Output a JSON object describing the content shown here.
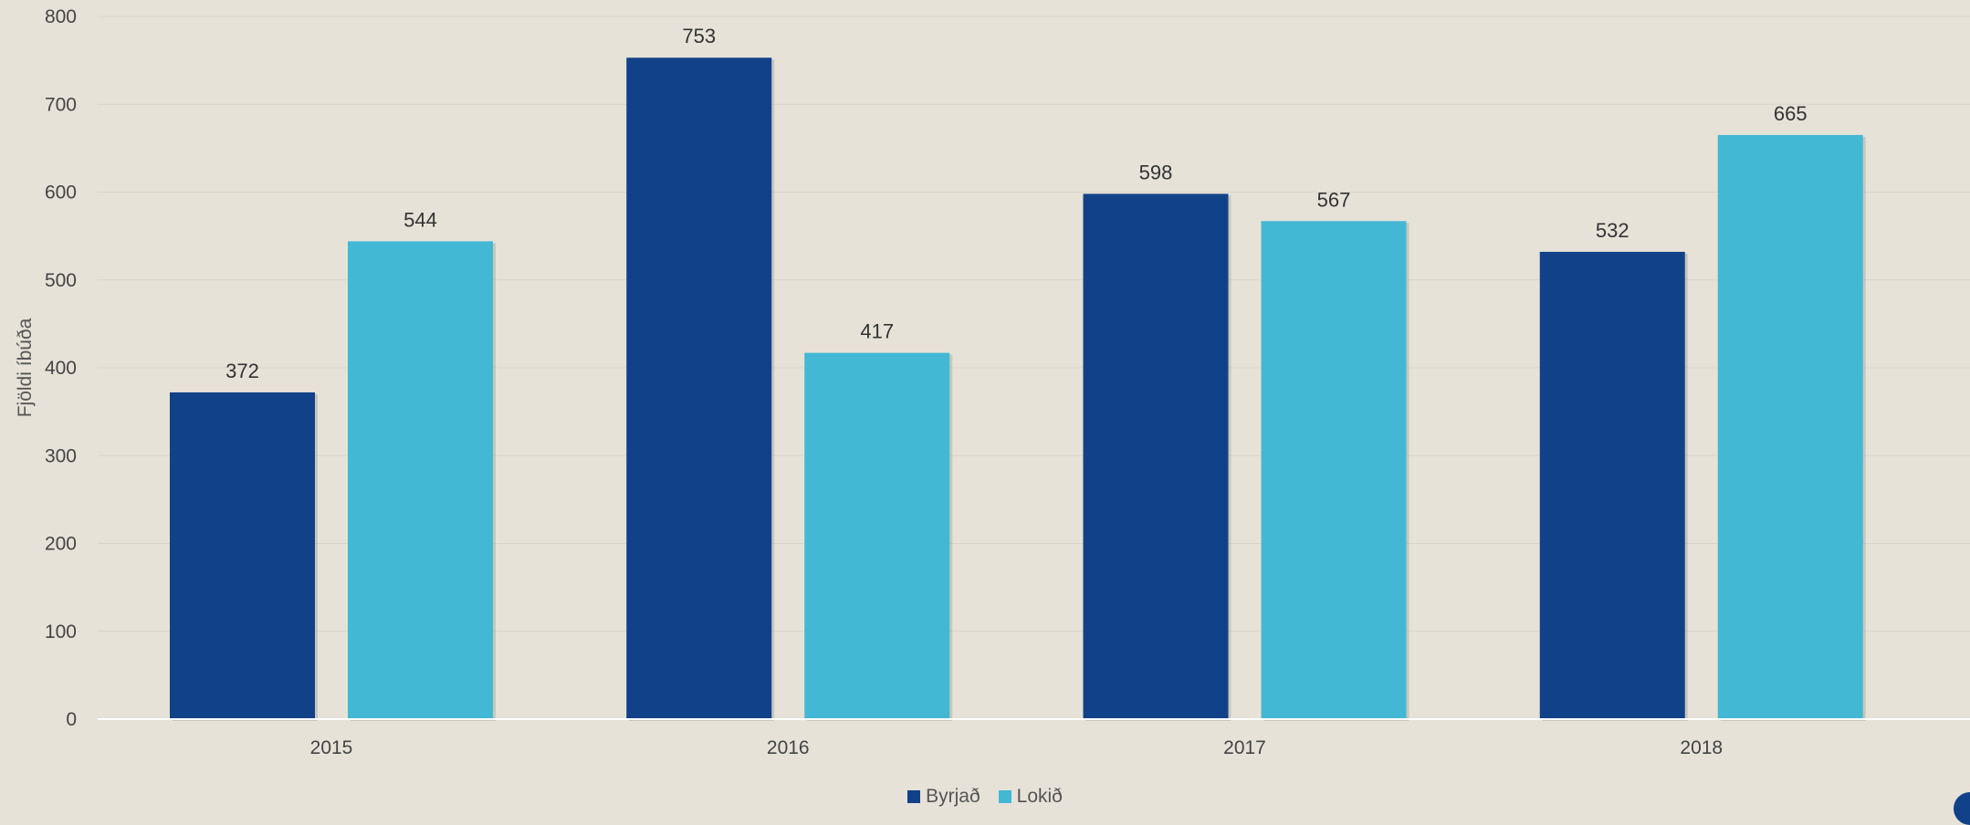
{
  "chart_data": {
    "type": "bar",
    "categories": [
      "2015",
      "2016",
      "2017",
      "2018"
    ],
    "series": [
      {
        "name": "Byrjað",
        "values": [
          372,
          753,
          598,
          532
        ],
        "color": "#114188"
      },
      {
        "name": "Lokið",
        "values": [
          544,
          417,
          567,
          665
        ],
        "color": "#42b8d4"
      }
    ],
    "ylabel": "Fjöldi íbúða",
    "ylim": [
      0,
      800
    ],
    "yticks": [
      "0",
      "100",
      "200",
      "300",
      "400",
      "500",
      "600",
      "700",
      "800"
    ],
    "grid": true,
    "legend": "bottom-center"
  }
}
